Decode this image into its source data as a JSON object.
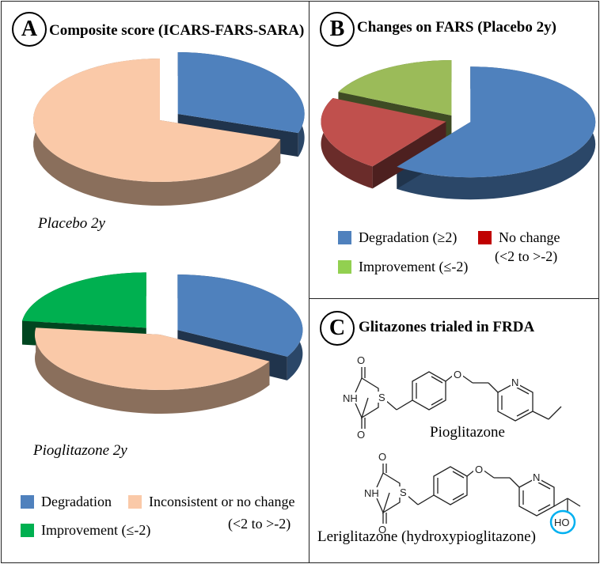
{
  "panel_a": {
    "badge": "A",
    "title": "Composite score (ICARS-FARS-SARA)",
    "caption_top": "Placebo  2y",
    "caption_bottom": "Pioglitazone 2y",
    "legend": {
      "degradation": "Degradation",
      "inconsistent": "Inconsistent or no change",
      "inconsistent_sub": "(<2 to >-2)",
      "improvement": "Improvement (≤-2)"
    }
  },
  "panel_b": {
    "badge": "B",
    "title": "Changes on FARS (Placebo 2y)",
    "legend": {
      "degradation": "Degradation (≥2)",
      "no_change": "No change",
      "no_change_sub": "(<2 to >-2)",
      "improvement": "Improvement (≤-2)"
    }
  },
  "panel_c": {
    "badge": "C",
    "title": "Glitazones trialed in FRDA",
    "mol1_name": "Pioglitazone",
    "mol2_name": "Leriglitazone  (hydroxypioglitazone)",
    "atoms": {
      "O": "O",
      "NH": "NH",
      "S": "S",
      "N": "N",
      "HO": "HO"
    }
  },
  "colors": {
    "blue": "#4F81BD",
    "peach": "#FAC9A8",
    "green_bright": "#00B050",
    "green_olive": "#9BBB59",
    "red": "#C0504D",
    "highlight": "#00B0F0"
  },
  "chart_data": [
    {
      "type": "pie",
      "title": "Composite score (ICARS-FARS-SARA)",
      "subtitle": "Placebo  2y",
      "categories": [
        "Degradation",
        "Inconsistent or no change"
      ],
      "values": [
        30,
        70
      ],
      "colors": [
        "#4F81BD",
        "#FAC9A8"
      ],
      "exploded": [
        "Degradation"
      ]
    },
    {
      "type": "pie",
      "title": "Composite score (ICARS-FARS-SARA)",
      "subtitle": "Pioglitazone 2y",
      "categories": [
        "Degradation",
        "Inconsistent or no change",
        "Improvement (≤-2)"
      ],
      "values": [
        33,
        44,
        23
      ],
      "colors": [
        "#4F81BD",
        "#FAC9A8",
        "#00B050"
      ],
      "exploded": [
        "Degradation",
        "Improvement (≤-2)"
      ]
    },
    {
      "type": "pie",
      "title": "Changes on FARS (Placebo 2y)",
      "categories": [
        "Degradation (≥2)",
        "No change",
        "Improvement (≤-2)"
      ],
      "values": [
        60,
        22,
        18
      ],
      "colors": [
        "#4F81BD",
        "#C0504D",
        "#9BBB59"
      ],
      "exploded": [
        "Degradation (≥2)",
        "No change",
        "Improvement (≤-2)"
      ]
    }
  ]
}
